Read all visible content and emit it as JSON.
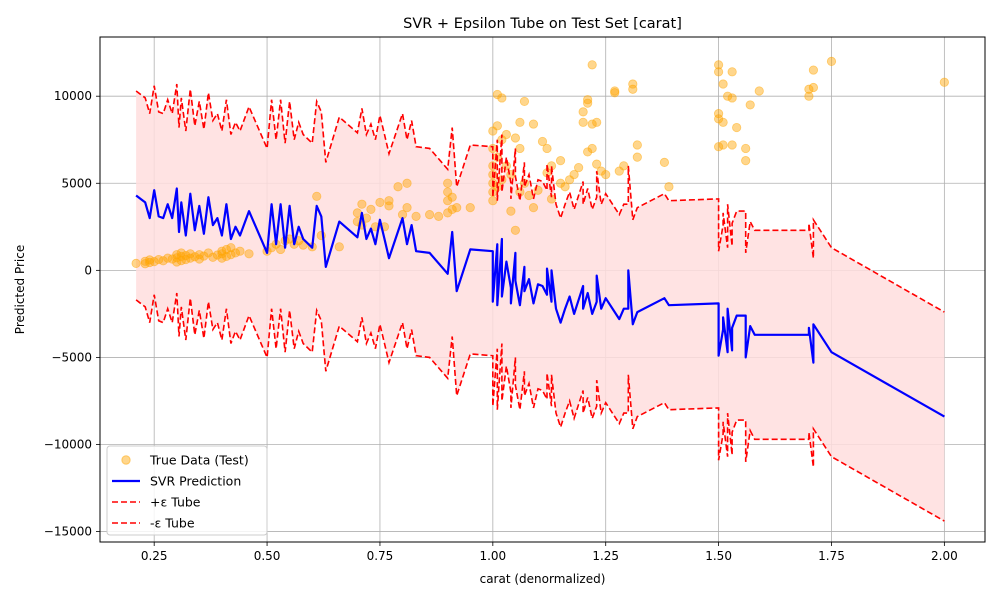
{
  "chart_data": {
    "type": "scatter",
    "title": "SVR + Epsilon Tube on Test Set [carat]",
    "xlabel": "carat (denormalized)",
    "ylabel": "Predicted Price",
    "xlim": [
      0.13,
      2.09
    ],
    "ylim": [
      -15600,
      13400
    ],
    "x_ticks": [
      0.25,
      0.5,
      0.75,
      1.0,
      1.25,
      1.5,
      1.75,
      2.0
    ],
    "x_tick_labels": [
      "0.25",
      "0.50",
      "0.75",
      "1.00",
      "1.25",
      "1.50",
      "1.75",
      "2.00"
    ],
    "y_ticks": [
      -15000,
      -10000,
      -5000,
      0,
      5000,
      10000
    ],
    "y_tick_labels": [
      "−15000",
      "−10000",
      "−5000",
      "0",
      "5000",
      "10000"
    ],
    "grid": true,
    "legend_position": "lower-left",
    "epsilon": 6000,
    "colors": {
      "scatter": "#ffa500",
      "prediction": "#0000ff",
      "tube": "#ff0000",
      "fill": "#ffdede"
    },
    "legend": [
      {
        "label": "True Data (Test)",
        "kind": "marker",
        "color": "#ffa500"
      },
      {
        "label": "SVR Prediction",
        "kind": "line",
        "color": "#0000ff"
      },
      {
        "label": "+ε Tube",
        "kind": "dashed",
        "color": "#ff0000"
      },
      {
        "label": "-ε Tube",
        "kind": "dashed",
        "color": "#ff0000"
      }
    ],
    "series": [
      {
        "name": "True Data (Test)",
        "kind": "scatter",
        "points": [
          [
            0.21,
            400
          ],
          [
            0.23,
            380
          ],
          [
            0.23,
            520
          ],
          [
            0.24,
            450
          ],
          [
            0.24,
            600
          ],
          [
            0.25,
            500
          ],
          [
            0.26,
            620
          ],
          [
            0.27,
            550
          ],
          [
            0.28,
            700
          ],
          [
            0.29,
            650
          ],
          [
            0.3,
            480
          ],
          [
            0.3,
            720
          ],
          [
            0.3,
            900
          ],
          [
            0.31,
            560
          ],
          [
            0.31,
            800
          ],
          [
            0.31,
            1000
          ],
          [
            0.32,
            620
          ],
          [
            0.32,
            850
          ],
          [
            0.33,
            700
          ],
          [
            0.33,
            950
          ],
          [
            0.34,
            780
          ],
          [
            0.35,
            650
          ],
          [
            0.35,
            900
          ],
          [
            0.36,
            820
          ],
          [
            0.37,
            1000
          ],
          [
            0.38,
            750
          ],
          [
            0.39,
            880
          ],
          [
            0.4,
            700
          ],
          [
            0.4,
            950
          ],
          [
            0.4,
            1100
          ],
          [
            0.41,
            800
          ],
          [
            0.41,
            1200
          ],
          [
            0.42,
            900
          ],
          [
            0.42,
            1300
          ],
          [
            0.43,
            1000
          ],
          [
            0.44,
            1100
          ],
          [
            0.46,
            950
          ],
          [
            0.5,
            1100
          ],
          [
            0.51,
            1300
          ],
          [
            0.52,
            1500
          ],
          [
            0.53,
            1200
          ],
          [
            0.54,
            1700
          ],
          [
            0.55,
            1800
          ],
          [
            0.56,
            1500
          ],
          [
            0.57,
            1700
          ],
          [
            0.58,
            1450
          ],
          [
            0.6,
            1350
          ],
          [
            0.61,
            4250
          ],
          [
            0.62,
            2000
          ],
          [
            0.66,
            1350
          ],
          [
            0.7,
            2800
          ],
          [
            0.7,
            3300
          ],
          [
            0.71,
            2600
          ],
          [
            0.71,
            3800
          ],
          [
            0.72,
            3000
          ],
          [
            0.73,
            3500
          ],
          [
            0.74,
            2500
          ],
          [
            0.75,
            3900
          ],
          [
            0.76,
            2500
          ],
          [
            0.77,
            3700
          ],
          [
            0.77,
            4000
          ],
          [
            0.79,
            4800
          ],
          [
            0.8,
            3200
          ],
          [
            0.81,
            3600
          ],
          [
            0.81,
            5000
          ],
          [
            0.83,
            3100
          ],
          [
            0.86,
            3200
          ],
          [
            0.88,
            3100
          ],
          [
            0.9,
            3300
          ],
          [
            0.9,
            4000
          ],
          [
            0.9,
            4500
          ],
          [
            0.9,
            5000
          ],
          [
            0.91,
            3500
          ],
          [
            0.91,
            4200
          ],
          [
            0.92,
            3600
          ],
          [
            0.95,
            3600
          ],
          [
            1.0,
            4000
          ],
          [
            1.0,
            4500
          ],
          [
            1.0,
            5000
          ],
          [
            1.0,
            5500
          ],
          [
            1.0,
            6000
          ],
          [
            1.0,
            7000
          ],
          [
            1.0,
            8000
          ],
          [
            1.01,
            4800
          ],
          [
            1.01,
            6500
          ],
          [
            1.01,
            8300
          ],
          [
            1.01,
            10100
          ],
          [
            1.02,
            5200
          ],
          [
            1.02,
            7500
          ],
          [
            1.02,
            9900
          ],
          [
            1.03,
            6000
          ],
          [
            1.03,
            7800
          ],
          [
            1.04,
            3400
          ],
          [
            1.04,
            5500
          ],
          [
            1.05,
            2300
          ],
          [
            1.05,
            7600
          ],
          [
            1.06,
            4500
          ],
          [
            1.06,
            8500
          ],
          [
            1.06,
            7000
          ],
          [
            1.07,
            9700
          ],
          [
            1.07,
            5000
          ],
          [
            1.08,
            4300
          ],
          [
            1.09,
            8400
          ],
          [
            1.09,
            3600
          ],
          [
            1.1,
            4600
          ],
          [
            1.11,
            7400
          ],
          [
            1.12,
            5600
          ],
          [
            1.12,
            7000
          ],
          [
            1.13,
            6000
          ],
          [
            1.13,
            4100
          ],
          [
            1.15,
            5000
          ],
          [
            1.15,
            6300
          ],
          [
            1.16,
            4800
          ],
          [
            1.17,
            5200
          ],
          [
            1.18,
            5500
          ],
          [
            1.19,
            5900
          ],
          [
            1.2,
            9100
          ],
          [
            1.2,
            8500
          ],
          [
            1.21,
            9600
          ],
          [
            1.21,
            9800
          ],
          [
            1.21,
            6800
          ],
          [
            1.22,
            8400
          ],
          [
            1.22,
            11800
          ],
          [
            1.22,
            7000
          ],
          [
            1.23,
            6100
          ],
          [
            1.23,
            8500
          ],
          [
            1.24,
            5700
          ],
          [
            1.25,
            5500
          ],
          [
            1.27,
            10300
          ],
          [
            1.27,
            10200
          ],
          [
            1.28,
            5700
          ],
          [
            1.29,
            6000
          ],
          [
            1.31,
            10700
          ],
          [
            1.31,
            10400
          ],
          [
            1.32,
            6500
          ],
          [
            1.32,
            7200
          ],
          [
            1.38,
            6200
          ],
          [
            1.39,
            4800
          ],
          [
            1.5,
            11800
          ],
          [
            1.5,
            11400
          ],
          [
            1.5,
            8700
          ],
          [
            1.5,
            9000
          ],
          [
            1.5,
            7100
          ],
          [
            1.51,
            10700
          ],
          [
            1.51,
            8500
          ],
          [
            1.51,
            7200
          ],
          [
            1.52,
            10000
          ],
          [
            1.53,
            11400
          ],
          [
            1.53,
            9900
          ],
          [
            1.53,
            7200
          ],
          [
            1.54,
            8200
          ],
          [
            1.56,
            7000
          ],
          [
            1.56,
            6300
          ],
          [
            1.57,
            9500
          ],
          [
            1.59,
            10300
          ],
          [
            1.7,
            10400
          ],
          [
            1.7,
            10000
          ],
          [
            1.71,
            11500
          ],
          [
            1.71,
            10500
          ],
          [
            1.75,
            12000
          ],
          [
            2.0,
            10800
          ]
        ]
      },
      {
        "name": "SVR Prediction",
        "kind": "line",
        "points": [
          [
            0.21,
            4300
          ],
          [
            0.23,
            3900
          ],
          [
            0.24,
            3000
          ],
          [
            0.25,
            4600
          ],
          [
            0.26,
            3100
          ],
          [
            0.27,
            3000
          ],
          [
            0.28,
            3800
          ],
          [
            0.29,
            3000
          ],
          [
            0.3,
            4700
          ],
          [
            0.305,
            2200
          ],
          [
            0.31,
            3900
          ],
          [
            0.32,
            2000
          ],
          [
            0.33,
            4400
          ],
          [
            0.34,
            2300
          ],
          [
            0.35,
            3700
          ],
          [
            0.36,
            2100
          ],
          [
            0.37,
            4200
          ],
          [
            0.38,
            2600
          ],
          [
            0.39,
            3000
          ],
          [
            0.4,
            2000
          ],
          [
            0.41,
            3800
          ],
          [
            0.42,
            1800
          ],
          [
            0.43,
            2500
          ],
          [
            0.44,
            2000
          ],
          [
            0.46,
            3400
          ],
          [
            0.5,
            1000
          ],
          [
            0.51,
            3800
          ],
          [
            0.52,
            1500
          ],
          [
            0.53,
            3800
          ],
          [
            0.54,
            1300
          ],
          [
            0.55,
            3700
          ],
          [
            0.56,
            1500
          ],
          [
            0.57,
            2500
          ],
          [
            0.58,
            1800
          ],
          [
            0.6,
            1300
          ],
          [
            0.61,
            3700
          ],
          [
            0.62,
            3100
          ],
          [
            0.63,
            200
          ],
          [
            0.66,
            2800
          ],
          [
            0.7,
            1900
          ],
          [
            0.71,
            3300
          ],
          [
            0.72,
            1800
          ],
          [
            0.73,
            2400
          ],
          [
            0.74,
            1500
          ],
          [
            0.75,
            2900
          ],
          [
            0.76,
            1800
          ],
          [
            0.77,
            700
          ],
          [
            0.8,
            3000
          ],
          [
            0.81,
            1500
          ],
          [
            0.82,
            2600
          ],
          [
            0.83,
            1100
          ],
          [
            0.86,
            1000
          ],
          [
            0.9,
            -200
          ],
          [
            0.91,
            2200
          ],
          [
            0.92,
            -1200
          ],
          [
            0.95,
            1200
          ],
          [
            1.0,
            1100
          ],
          [
            1.0,
            -1800
          ],
          [
            1.01,
            1500
          ],
          [
            1.01,
            -2000
          ],
          [
            1.02,
            1800
          ],
          [
            1.02,
            -1500
          ],
          [
            1.03,
            500
          ],
          [
            1.04,
            -1000
          ],
          [
            1.04,
            -1900
          ],
          [
            1.05,
            1000
          ],
          [
            1.05,
            -600
          ],
          [
            1.06,
            -2000
          ],
          [
            1.07,
            200
          ],
          [
            1.07,
            -1200
          ],
          [
            1.08,
            -500
          ],
          [
            1.09,
            -1900
          ],
          [
            1.1,
            -800
          ],
          [
            1.11,
            -900
          ],
          [
            1.12,
            -1400
          ],
          [
            1.12,
            100
          ],
          [
            1.13,
            -1800
          ],
          [
            1.13,
            0
          ],
          [
            1.14,
            -2200
          ],
          [
            1.15,
            -3000
          ],
          [
            1.16,
            -2200
          ],
          [
            1.17,
            -1500
          ],
          [
            1.18,
            -2500
          ],
          [
            1.19,
            -1700
          ],
          [
            1.2,
            -900
          ],
          [
            1.2,
            -2200
          ],
          [
            1.21,
            -1300
          ],
          [
            1.22,
            -2500
          ],
          [
            1.23,
            -1800
          ],
          [
            1.23,
            -300
          ],
          [
            1.24,
            -2200
          ],
          [
            1.25,
            -1600
          ],
          [
            1.28,
            -2800
          ],
          [
            1.29,
            -2200
          ],
          [
            1.3,
            -2200
          ],
          [
            1.3,
            0
          ],
          [
            1.31,
            -3100
          ],
          [
            1.32,
            -2400
          ],
          [
            1.38,
            -1600
          ],
          [
            1.39,
            -2000
          ],
          [
            1.5,
            -1900
          ],
          [
            1.5,
            -4900
          ],
          [
            1.51,
            -3400
          ],
          [
            1.51,
            -2700
          ],
          [
            1.52,
            -4700
          ],
          [
            1.52,
            -2200
          ],
          [
            1.53,
            -4600
          ],
          [
            1.53,
            -3300
          ],
          [
            1.54,
            -2600
          ],
          [
            1.56,
            -2600
          ],
          [
            1.56,
            -5000
          ],
          [
            1.57,
            -3200
          ],
          [
            1.58,
            -3700
          ],
          [
            1.7,
            -3700
          ],
          [
            1.7,
            -3300
          ],
          [
            1.71,
            -5300
          ],
          [
            1.71,
            -3100
          ],
          [
            1.75,
            -4700
          ],
          [
            2.0,
            -8400
          ]
        ]
      }
    ]
  }
}
